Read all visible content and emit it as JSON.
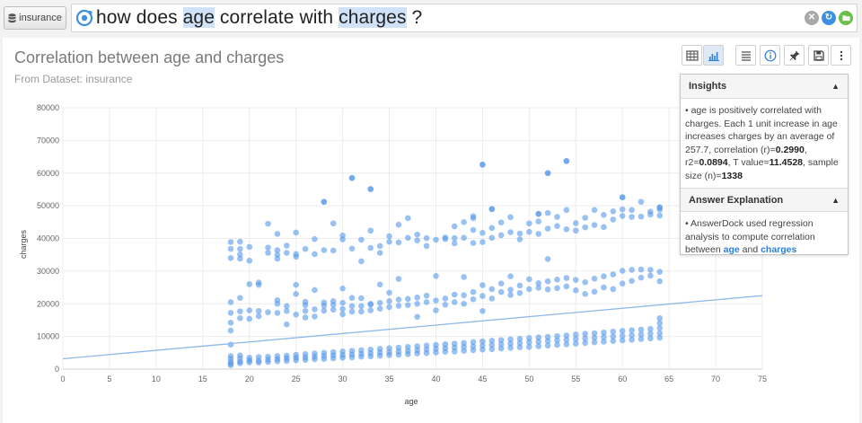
{
  "topbar": {
    "dataset_label": "insurance",
    "query": {
      "p1": "how does ",
      "h1": "age",
      "p2": " correlate with ",
      "h2": "charges",
      "p3": " ?"
    }
  },
  "panel": {
    "title": "Correlation between age and charges",
    "subtitle": "From Dataset: insurance"
  },
  "toolbar": {
    "icons": [
      "table-view-icon",
      "chart-view-icon",
      "list-icon",
      "info-icon",
      "pin-icon",
      "save-icon",
      "more-icon"
    ]
  },
  "insights": {
    "title": "Insights",
    "text1": "• age is positively correlated with charges. Each 1 unit increase in age increases charges by an average of 257.7, correlation (r)=",
    "r": "0.2990",
    "text2": ", r2=",
    "r2": "0.0894",
    "text3": ", T value=",
    "t": "11.4528",
    "text4": ", sample size (n)=",
    "n": "1338",
    "explanation_title": "Answer Explanation",
    "exp1": "• AnswerDock used regression analysis to compute correlation between ",
    "exp_age": "age",
    "exp_and": " and ",
    "exp_charges": "charges"
  },
  "chart_data": {
    "type": "scatter",
    "xlabel": "age",
    "ylabel": "charges",
    "xlim": [
      0,
      75
    ],
    "ylim": [
      0,
      80000
    ],
    "x_ticks": [
      0,
      5,
      10,
      15,
      20,
      25,
      30,
      35,
      40,
      45,
      50,
      55,
      60,
      65,
      70,
      75
    ],
    "y_ticks": [
      0,
      10000,
      20000,
      30000,
      40000,
      50000,
      60000,
      70000,
      80000
    ],
    "grid": true,
    "point_color": "#5b9bea",
    "trendline": {
      "slope": 257.7,
      "intercept": 3166,
      "color": "#8fb8ec"
    },
    "outliers": [
      [
        28,
        51200
      ],
      [
        31,
        58500
      ],
      [
        33,
        55100
      ],
      [
        45,
        62600
      ],
      [
        52,
        60000
      ],
      [
        54,
        63700
      ],
      [
        60,
        52600
      ],
      [
        64,
        49500
      ],
      [
        46,
        49000
      ],
      [
        51,
        47500
      ]
    ],
    "points": [
      [
        18,
        1700
      ],
      [
        18,
        2200
      ],
      [
        18,
        3100
      ],
      [
        18,
        4000
      ],
      [
        18,
        1200
      ],
      [
        18,
        7500
      ],
      [
        18,
        11800
      ],
      [
        18,
        14200
      ],
      [
        18,
        17200
      ],
      [
        18,
        20500
      ],
      [
        18,
        34000
      ],
      [
        18,
        36800
      ],
      [
        18,
        38900
      ],
      [
        19,
        1800
      ],
      [
        19,
        2300
      ],
      [
        19,
        3300
      ],
      [
        19,
        4200
      ],
      [
        19,
        15600
      ],
      [
        19,
        17700
      ],
      [
        19,
        21800
      ],
      [
        19,
        33800
      ],
      [
        19,
        35100
      ],
      [
        19,
        36800
      ],
      [
        19,
        39000
      ],
      [
        20,
        2100
      ],
      [
        20,
        2700
      ],
      [
        20,
        3500
      ],
      [
        20,
        15400
      ],
      [
        20,
        18000
      ],
      [
        20,
        26000
      ],
      [
        20,
        33200
      ],
      [
        20,
        37400
      ],
      [
        21,
        2000
      ],
      [
        21,
        2600
      ],
      [
        21,
        3700
      ],
      [
        21,
        16200
      ],
      [
        21,
        17800
      ],
      [
        21,
        25800
      ],
      [
        21,
        26500
      ],
      [
        22,
        2200
      ],
      [
        22,
        2900
      ],
      [
        22,
        3800
      ],
      [
        22,
        17400
      ],
      [
        22,
        35600
      ],
      [
        22,
        37200
      ],
      [
        22,
        44500
      ],
      [
        23,
        2400
      ],
      [
        23,
        3100
      ],
      [
        23,
        4000
      ],
      [
        23,
        17200
      ],
      [
        23,
        20000
      ],
      [
        23,
        21100
      ],
      [
        23,
        33800
      ],
      [
        23,
        35000
      ],
      [
        23,
        36400
      ],
      [
        23,
        41400
      ],
      [
        24,
        2500
      ],
      [
        24,
        3300
      ],
      [
        24,
        4100
      ],
      [
        24,
        13700
      ],
      [
        24,
        17800
      ],
      [
        24,
        19300
      ],
      [
        24,
        35600
      ],
      [
        24,
        37800
      ],
      [
        25,
        2700
      ],
      [
        25,
        3500
      ],
      [
        25,
        4400
      ],
      [
        25,
        16700
      ],
      [
        25,
        23000
      ],
      [
        25,
        25800
      ],
      [
        25,
        34400
      ],
      [
        25,
        35200
      ],
      [
        25,
        41800
      ],
      [
        26,
        2800
      ],
      [
        26,
        3600
      ],
      [
        26,
        4600
      ],
      [
        26,
        15800
      ],
      [
        26,
        17800
      ],
      [
        26,
        19600
      ],
      [
        26,
        20600
      ],
      [
        26,
        36800
      ],
      [
        27,
        3000
      ],
      [
        27,
        3800
      ],
      [
        27,
        4800
      ],
      [
        27,
        16100
      ],
      [
        27,
        18300
      ],
      [
        27,
        24200
      ],
      [
        27,
        35200
      ],
      [
        27,
        39800
      ],
      [
        28,
        3100
      ],
      [
        28,
        4000
      ],
      [
        28,
        5000
      ],
      [
        28,
        17900
      ],
      [
        28,
        19400
      ],
      [
        28,
        20400
      ],
      [
        28,
        36400
      ],
      [
        28,
        51200
      ],
      [
        29,
        3300
      ],
      [
        29,
        4200
      ],
      [
        29,
        5200
      ],
      [
        29,
        18200
      ],
      [
        29,
        19700
      ],
      [
        29,
        20800
      ],
      [
        29,
        36300
      ],
      [
        29,
        44600
      ],
      [
        30,
        3500
      ],
      [
        30,
        4300
      ],
      [
        30,
        5400
      ],
      [
        30,
        16800
      ],
      [
        30,
        18400
      ],
      [
        30,
        20300
      ],
      [
        30,
        24700
      ],
      [
        30,
        39700
      ],
      [
        30,
        40900
      ],
      [
        31,
        3600
      ],
      [
        31,
        4500
      ],
      [
        31,
        5600
      ],
      [
        31,
        17600
      ],
      [
        31,
        19300
      ],
      [
        31,
        21800
      ],
      [
        31,
        36900
      ],
      [
        31,
        58500
      ],
      [
        32,
        3800
      ],
      [
        32,
        4700
      ],
      [
        32,
        5800
      ],
      [
        32,
        17600
      ],
      [
        32,
        19300
      ],
      [
        32,
        21700
      ],
      [
        32,
        33000
      ],
      [
        32,
        39600
      ],
      [
        33,
        3900
      ],
      [
        33,
        4900
      ],
      [
        33,
        6000
      ],
      [
        33,
        18000
      ],
      [
        33,
        19700
      ],
      [
        33,
        20000
      ],
      [
        33,
        37100
      ],
      [
        33,
        42400
      ],
      [
        33,
        55100
      ],
      [
        34,
        4100
      ],
      [
        34,
        5100
      ],
      [
        34,
        6200
      ],
      [
        34,
        18500
      ],
      [
        34,
        20300
      ],
      [
        34,
        25900
      ],
      [
        34,
        35600
      ],
      [
        34,
        37700
      ],
      [
        35,
        4300
      ],
      [
        35,
        5200
      ],
      [
        35,
        6400
      ],
      [
        35,
        19000
      ],
      [
        35,
        20800
      ],
      [
        35,
        23400
      ],
      [
        35,
        39000
      ],
      [
        35,
        40700
      ],
      [
        36,
        4400
      ],
      [
        36,
        5400
      ],
      [
        36,
        6600
      ],
      [
        36,
        19400
      ],
      [
        36,
        21300
      ],
      [
        36,
        27600
      ],
      [
        36,
        38800
      ],
      [
        36,
        44200
      ],
      [
        37,
        4600
      ],
      [
        37,
        5600
      ],
      [
        37,
        6800
      ],
      [
        37,
        19600
      ],
      [
        37,
        21500
      ],
      [
        37,
        40200
      ],
      [
        37,
        46200
      ],
      [
        38,
        4800
      ],
      [
        38,
        5800
      ],
      [
        38,
        7000
      ],
      [
        38,
        16000
      ],
      [
        38,
        20000
      ],
      [
        38,
        21900
      ],
      [
        38,
        39400
      ],
      [
        38,
        41200
      ],
      [
        39,
        4900
      ],
      [
        39,
        6000
      ],
      [
        39,
        7200
      ],
      [
        39,
        20500
      ],
      [
        39,
        22500
      ],
      [
        39,
        37700
      ],
      [
        39,
        40100
      ],
      [
        40,
        5100
      ],
      [
        40,
        6200
      ],
      [
        40,
        7400
      ],
      [
        40,
        18000
      ],
      [
        40,
        21000
      ],
      [
        40,
        28500
      ],
      [
        40,
        39600
      ],
      [
        41,
        5300
      ],
      [
        41,
        6400
      ],
      [
        41,
        7600
      ],
      [
        41,
        19700
      ],
      [
        41,
        21600
      ],
      [
        41,
        39800
      ],
      [
        41,
        40300
      ],
      [
        42,
        5400
      ],
      [
        42,
        6600
      ],
      [
        42,
        7800
      ],
      [
        42,
        20500
      ],
      [
        42,
        22800
      ],
      [
        42,
        38500
      ],
      [
        42,
        40100
      ],
      [
        42,
        43700
      ],
      [
        43,
        5600
      ],
      [
        43,
        6800
      ],
      [
        43,
        8000
      ],
      [
        43,
        20000
      ],
      [
        43,
        22600
      ],
      [
        43,
        28200
      ],
      [
        43,
        40200
      ],
      [
        43,
        45000
      ],
      [
        44,
        5800
      ],
      [
        44,
        7000
      ],
      [
        44,
        8300
      ],
      [
        44,
        21400
      ],
      [
        44,
        23600
      ],
      [
        44,
        38600
      ],
      [
        44,
        42600
      ],
      [
        44,
        46200
      ],
      [
        44,
        46800
      ],
      [
        45,
        6000
      ],
      [
        45,
        7200
      ],
      [
        45,
        8500
      ],
      [
        45,
        17800
      ],
      [
        45,
        22400
      ],
      [
        45,
        25700
      ],
      [
        45,
        38900
      ],
      [
        45,
        41700
      ],
      [
        45,
        62600
      ],
      [
        46,
        6100
      ],
      [
        46,
        7400
      ],
      [
        46,
        8700
      ],
      [
        46,
        21600
      ],
      [
        46,
        24500
      ],
      [
        46,
        40200
      ],
      [
        46,
        43200
      ],
      [
        46,
        49000
      ],
      [
        47,
        6300
      ],
      [
        47,
        7600
      ],
      [
        47,
        8900
      ],
      [
        47,
        23600
      ],
      [
        47,
        26200
      ],
      [
        47,
        41000
      ],
      [
        47,
        44900
      ],
      [
        48,
        6500
      ],
      [
        48,
        7800
      ],
      [
        48,
        9100
      ],
      [
        48,
        22700
      ],
      [
        48,
        24300
      ],
      [
        48,
        28400
      ],
      [
        48,
        41900
      ],
      [
        48,
        46500
      ],
      [
        49,
        6700
      ],
      [
        49,
        8000
      ],
      [
        49,
        9300
      ],
      [
        49,
        23300
      ],
      [
        49,
        25600
      ],
      [
        49,
        39700
      ],
      [
        49,
        41500
      ],
      [
        50,
        6800
      ],
      [
        50,
        8200
      ],
      [
        50,
        9500
      ],
      [
        50,
        24500
      ],
      [
        50,
        27500
      ],
      [
        50,
        42000
      ],
      [
        50,
        44600
      ],
      [
        51,
        7000
      ],
      [
        51,
        8400
      ],
      [
        51,
        9700
      ],
      [
        51,
        24900
      ],
      [
        51,
        26300
      ],
      [
        51,
        41400
      ],
      [
        51,
        45200
      ],
      [
        51,
        47500
      ],
      [
        52,
        7200
      ],
      [
        52,
        8600
      ],
      [
        52,
        9900
      ],
      [
        52,
        24400
      ],
      [
        52,
        26900
      ],
      [
        52,
        33700
      ],
      [
        52,
        43000
      ],
      [
        52,
        47800
      ],
      [
        52,
        60000
      ],
      [
        53,
        7400
      ],
      [
        53,
        8800
      ],
      [
        53,
        10100
      ],
      [
        53,
        24800
      ],
      [
        53,
        27400
      ],
      [
        53,
        43800
      ],
      [
        53,
        46600
      ],
      [
        54,
        7600
      ],
      [
        54,
        9000
      ],
      [
        54,
        10300
      ],
      [
        54,
        25300
      ],
      [
        54,
        27900
      ],
      [
        54,
        42800
      ],
      [
        54,
        48700
      ],
      [
        54,
        63700
      ],
      [
        55,
        7800
      ],
      [
        55,
        9200
      ],
      [
        55,
        10600
      ],
      [
        55,
        24100
      ],
      [
        55,
        27300
      ],
      [
        55,
        42400
      ],
      [
        55,
        44700
      ],
      [
        56,
        8000
      ],
      [
        56,
        9400
      ],
      [
        56,
        10800
      ],
      [
        56,
        23000
      ],
      [
        56,
        26600
      ],
      [
        56,
        43400
      ],
      [
        56,
        46300
      ],
      [
        57,
        8200
      ],
      [
        57,
        9600
      ],
      [
        57,
        11000
      ],
      [
        57,
        23700
      ],
      [
        57,
        27700
      ],
      [
        57,
        44100
      ],
      [
        57,
        48700
      ],
      [
        58,
        8400
      ],
      [
        58,
        9800
      ],
      [
        58,
        11200
      ],
      [
        58,
        25000
      ],
      [
        58,
        28400
      ],
      [
        58,
        43500
      ],
      [
        58,
        47200
      ],
      [
        59,
        8600
      ],
      [
        59,
        10000
      ],
      [
        59,
        11500
      ],
      [
        59,
        24500
      ],
      [
        59,
        29000
      ],
      [
        59,
        45800
      ],
      [
        59,
        48300
      ],
      [
        60,
        8800
      ],
      [
        60,
        10200
      ],
      [
        60,
        11700
      ],
      [
        60,
        26200
      ],
      [
        60,
        30100
      ],
      [
        60,
        46900
      ],
      [
        60,
        48900
      ],
      [
        60,
        52600
      ],
      [
        61,
        9000
      ],
      [
        61,
        10400
      ],
      [
        61,
        11900
      ],
      [
        61,
        27000
      ],
      [
        61,
        30400
      ],
      [
        61,
        46600
      ],
      [
        61,
        48700
      ],
      [
        62,
        9200
      ],
      [
        62,
        10600
      ],
      [
        62,
        12100
      ],
      [
        62,
        28000
      ],
      [
        62,
        30500
      ],
      [
        62,
        46700
      ],
      [
        62,
        51200
      ],
      [
        63,
        9400
      ],
      [
        63,
        10800
      ],
      [
        63,
        12300
      ],
      [
        63,
        28600
      ],
      [
        63,
        30400
      ],
      [
        63,
        47300
      ],
      [
        63,
        48200
      ],
      [
        64,
        9600
      ],
      [
        64,
        11000
      ],
      [
        64,
        12600
      ],
      [
        64,
        14100
      ],
      [
        64,
        15600
      ],
      [
        64,
        26900
      ],
      [
        64,
        29800
      ],
      [
        64,
        47000
      ],
      [
        64,
        48800
      ],
      [
        64,
        49500
      ]
    ]
  }
}
